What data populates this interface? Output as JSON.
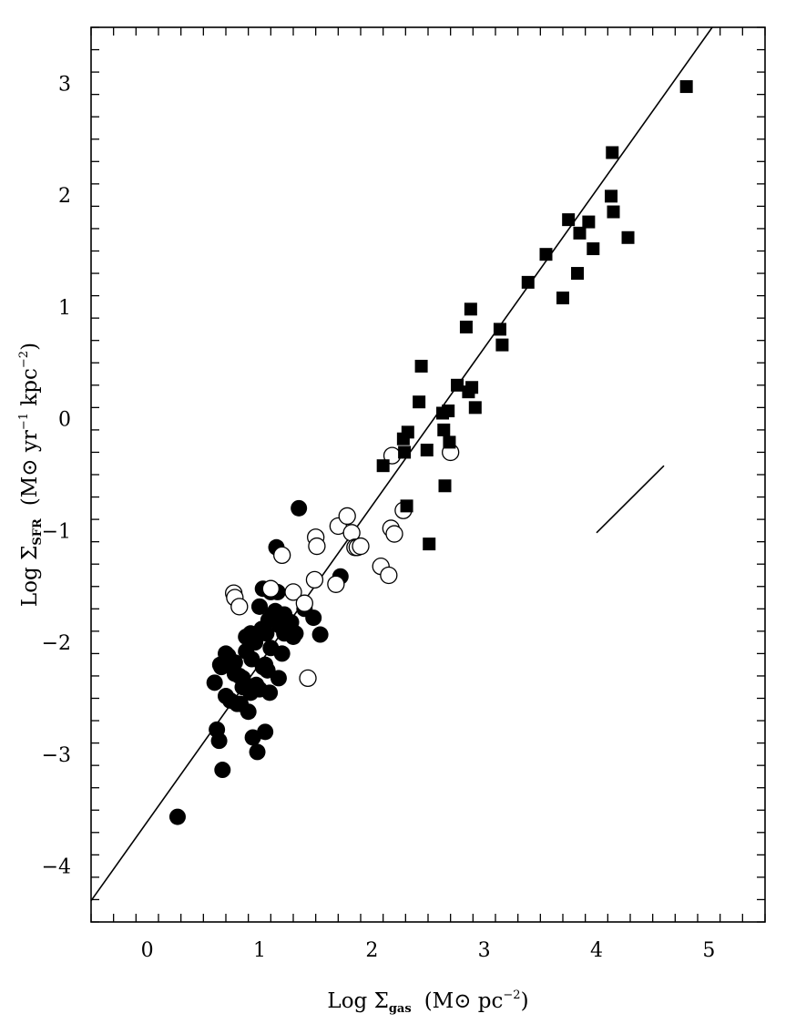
{
  "chart_data": {
    "type": "scatter",
    "title": "",
    "xlabel": {
      "prefix": "Log Σ",
      "sub": "gas",
      "units": "(M⊙ pc",
      "units_sup": "−2",
      "units_close": ")"
    },
    "ylabel": {
      "prefix": "Log Σ",
      "sub": "SFR",
      "units": "(M⊙ yr",
      "sup1": "−1",
      "units_mid": " kpc",
      "sup2": "−2",
      "units_close": ")"
    },
    "xlim": [
      -0.5,
      5.5
    ],
    "ylim": [
      -4.5,
      3.5
    ],
    "x_ticks": [
      {
        "v": 0,
        "label": "0"
      },
      {
        "v": 1,
        "label": "1"
      },
      {
        "v": 2,
        "label": "2"
      },
      {
        "v": 3,
        "label": "3"
      },
      {
        "v": 4,
        "label": "4"
      },
      {
        "v": 5,
        "label": "5"
      }
    ],
    "y_ticks": [
      {
        "v": -4,
        "label": "−4"
      },
      {
        "v": -3,
        "label": "−3"
      },
      {
        "v": -2,
        "label": "−2"
      },
      {
        "v": -1,
        "label": "−1"
      },
      {
        "v": 0,
        "label": "0"
      },
      {
        "v": 1,
        "label": "1"
      },
      {
        "v": 2,
        "label": "2"
      },
      {
        "v": 3,
        "label": "3"
      }
    ],
    "grid": false,
    "fit_line": {
      "x": [
        -0.5,
        5.03
      ],
      "y": [
        -4.31,
        3.5
      ]
    },
    "slope_segment": {
      "x": [
        4.0,
        4.6
      ],
      "y": [
        -1.02,
        -0.42
      ]
    },
    "series": [
      {
        "marker": "filled-circle",
        "x": [
          0.27,
          0.62,
          0.64,
          0.66,
          0.67,
          0.7,
          0.72,
          0.74,
          0.78,
          0.8,
          0.82,
          0.85,
          0.88,
          0.9,
          0.92,
          0.94,
          0.96,
          0.98,
          1.0,
          1.02,
          1.05,
          1.07,
          1.09,
          1.1,
          1.12,
          1.15,
          1.17,
          1.2,
          1.22,
          1.25,
          1.28,
          1.3,
          0.78,
          0.83,
          0.88,
          0.93,
          0.97,
          1.0,
          1.03,
          1.06,
          1.1,
          1.14,
          1.18,
          1.22,
          0.6,
          0.65,
          0.7,
          0.85,
          0.95,
          1.05,
          1.0,
          1.08,
          1.16,
          1.35,
          1.4,
          1.48,
          1.54,
          1.72,
          1.32,
          0.92,
          1.03
        ],
        "y": [
          -3.56,
          -2.78,
          -2.88,
          -2.22,
          -3.14,
          -2.48,
          -2.12,
          -2.52,
          -2.18,
          -2.55,
          -2.3,
          -2.4,
          -2.08,
          -2.62,
          -2.45,
          -2.85,
          -2.0,
          -2.98,
          -1.68,
          -1.88,
          -2.8,
          -2.25,
          -2.45,
          -1.55,
          -1.75,
          -1.15,
          -2.32,
          -2.1,
          -1.75,
          -1.9,
          -1.82,
          -1.95,
          -2.28,
          -2.55,
          -1.95,
          -2.15,
          -2.38,
          -2.42,
          -1.52,
          -1.92,
          -2.05,
          -1.72,
          -1.85,
          -1.92,
          -2.36,
          -2.2,
          -2.1,
          -2.32,
          -2.0,
          -2.2,
          -1.68,
          -1.8,
          -1.55,
          -0.8,
          -1.7,
          -1.78,
          -1.93,
          -1.41,
          -1.92,
          -1.92,
          -2.22
        ]
      },
      {
        "marker": "open-circle",
        "x": [
          0.77,
          0.78,
          0.82,
          1.1,
          1.2,
          1.3,
          1.4,
          1.43,
          1.49,
          1.5,
          1.51,
          1.68,
          1.7,
          1.78,
          1.82,
          1.85,
          1.87,
          1.9,
          2.08,
          2.15,
          2.17,
          2.2,
          2.18,
          2.28,
          2.7
        ],
        "y": [
          -1.56,
          -1.6,
          -1.68,
          -1.52,
          -1.22,
          -1.55,
          -1.65,
          -2.32,
          -1.44,
          -1.06,
          -1.14,
          -1.48,
          -0.96,
          -0.87,
          -1.02,
          -1.15,
          -1.15,
          -1.14,
          -1.32,
          -1.4,
          -0.98,
          -1.03,
          -0.33,
          -0.82,
          -0.3
        ]
      },
      {
        "marker": "filled-square",
        "x": [
          2.1,
          2.28,
          2.29,
          2.31,
          2.32,
          2.42,
          2.44,
          2.49,
          2.51,
          2.63,
          2.64,
          2.65,
          2.68,
          2.69,
          2.76,
          2.84,
          2.86,
          2.88,
          2.89,
          2.92,
          3.14,
          3.16,
          3.39,
          3.55,
          3.7,
          3.75,
          3.83,
          3.85,
          3.93,
          3.97,
          4.13,
          4.14,
          4.15,
          4.28,
          4.8
        ],
        "y": [
          -0.42,
          -0.18,
          -0.3,
          -0.78,
          -0.12,
          0.15,
          0.47,
          -0.28,
          -1.12,
          0.05,
          -0.1,
          -0.6,
          0.07,
          -0.21,
          0.3,
          0.82,
          0.24,
          0.98,
          0.28,
          0.1,
          0.8,
          0.66,
          1.22,
          1.47,
          1.08,
          1.78,
          1.3,
          1.66,
          1.76,
          1.52,
          1.99,
          2.38,
          1.85,
          1.62,
          2.97
        ]
      }
    ]
  }
}
